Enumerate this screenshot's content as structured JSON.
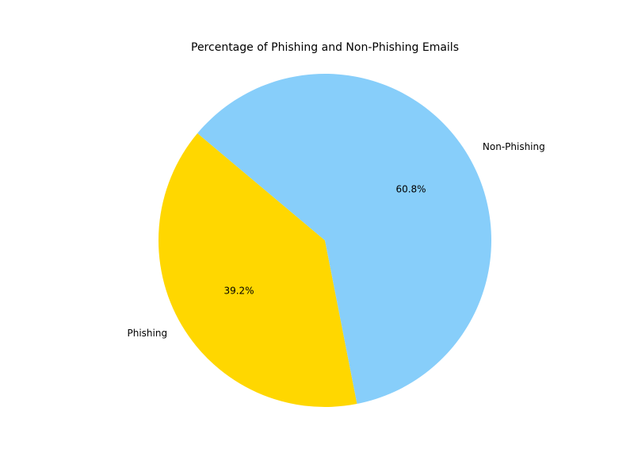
{
  "chart_data": {
    "type": "pie",
    "title": "Percentage of Phishing and Non-Phishing Emails",
    "slices": [
      {
        "label": "Phishing",
        "value": 39.2,
        "pct_text": "39.2%",
        "color": "#FFD700"
      },
      {
        "label": "Non-Phishing",
        "value": 60.8,
        "pct_text": "60.8%",
        "color": "#87CEFA"
      }
    ],
    "start_angle_deg": 140,
    "direction": "counterclockwise",
    "legend": "none"
  }
}
